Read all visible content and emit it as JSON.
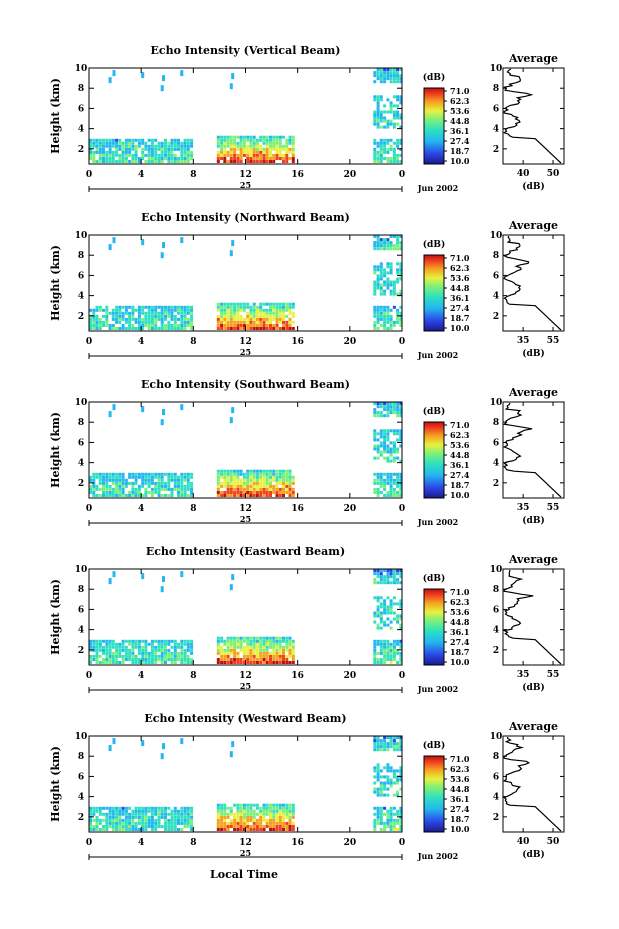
{
  "figure": {
    "xlabel_bottom": "Local Time",
    "date_label": "Jun 2002",
    "day_label": "25",
    "ylabel": "Height (km)",
    "colorbar_unit": "(dB)",
    "avg_title": "Average",
    "avg_xlabel": "(dB)"
  },
  "chart_data": [
    {
      "type": "heatmap",
      "title": "Echo Intensity (Vertical Beam)",
      "xlim": [
        0,
        24
      ],
      "ylim": [
        0.5,
        10
      ],
      "xticks": [
        "0",
        "4",
        "8",
        "12",
        "16",
        "20",
        "0"
      ],
      "yticks": [
        "2",
        "4",
        "6",
        "8",
        "10"
      ],
      "colorbar": [
        "71.0",
        "62.3",
        "53.6",
        "44.8",
        "36.1",
        "27.4",
        "18.7",
        "10.0"
      ],
      "avg": {
        "xlim": [
          30,
          60
        ],
        "xticks": [
          "40",
          "50"
        ],
        "yticks": [
          "2",
          "4",
          "6",
          "8",
          "10"
        ]
      }
    },
    {
      "type": "heatmap",
      "title": "Echo Intensity (Northward Beam)",
      "xlim": [
        0,
        24
      ],
      "ylim": [
        0.5,
        10
      ],
      "xticks": [
        "0",
        "4",
        "8",
        "12",
        "16",
        "20",
        "0"
      ],
      "yticks": [
        "2",
        "4",
        "6",
        "8",
        "10"
      ],
      "colorbar": [
        "71.0",
        "62.3",
        "53.6",
        "44.8",
        "36.1",
        "27.4",
        "18.7",
        "10.0"
      ],
      "avg": {
        "xlim": [
          30,
          58
        ],
        "xticks": [
          "35",
          "55"
        ],
        "yticks": [
          "2",
          "4",
          "6",
          "8",
          "10"
        ]
      }
    },
    {
      "type": "heatmap",
      "title": "Echo Intensity (Southward Beam)",
      "xlim": [
        0,
        24
      ],
      "ylim": [
        0.5,
        10
      ],
      "xticks": [
        "0",
        "4",
        "8",
        "12",
        "16",
        "20",
        "0"
      ],
      "yticks": [
        "2",
        "4",
        "6",
        "8",
        "10"
      ],
      "colorbar": [
        "71.0",
        "62.3",
        "53.6",
        "44.8",
        "36.1",
        "27.4",
        "18.7",
        "10.0"
      ],
      "avg": {
        "xlim": [
          30,
          58
        ],
        "xticks": [
          "35",
          "55"
        ],
        "yticks": [
          "2",
          "4",
          "6",
          "8",
          "10"
        ]
      }
    },
    {
      "type": "heatmap",
      "title": "Echo Intensity (Eastward Beam)",
      "xlim": [
        0,
        24
      ],
      "ylim": [
        0.5,
        10
      ],
      "xticks": [
        "0",
        "4",
        "8",
        "12",
        "16",
        "20",
        "0"
      ],
      "yticks": [
        "2",
        "4",
        "6",
        "8",
        "10"
      ],
      "colorbar": [
        "71.0",
        "62.3",
        "53.6",
        "44.8",
        "36.1",
        "27.4",
        "18.7",
        "10.0"
      ],
      "avg": {
        "xlim": [
          30,
          58
        ],
        "xticks": [
          "35",
          "55"
        ],
        "yticks": [
          "2",
          "4",
          "6",
          "8",
          "10"
        ]
      }
    },
    {
      "type": "heatmap",
      "title": "Echo Intensity (Westward Beam)",
      "xlim": [
        0,
        24
      ],
      "ylim": [
        0.5,
        10
      ],
      "xticks": [
        "0",
        "4",
        "8",
        "12",
        "16",
        "20",
        "0"
      ],
      "yticks": [
        "2",
        "4",
        "6",
        "8",
        "10"
      ],
      "colorbar": [
        "71.0",
        "62.3",
        "53.6",
        "44.8",
        "36.1",
        "27.4",
        "18.7",
        "10.0"
      ],
      "avg": {
        "xlim": [
          30,
          52
        ],
        "xticks": [
          "40",
          "50"
        ],
        "yticks": [
          "2",
          "4",
          "6",
          "8",
          "10"
        ]
      }
    }
  ]
}
